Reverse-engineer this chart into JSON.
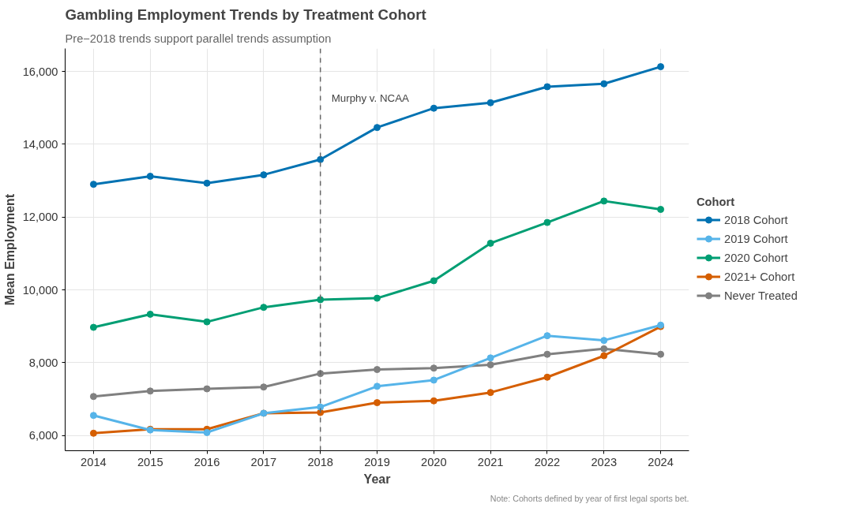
{
  "chart_data": {
    "type": "line",
    "title": "Gambling Employment Trends by Treatment Cohort",
    "subtitle": "Pre−2018 trends support parallel trends assumption",
    "xlabel": "Year",
    "ylabel": "Mean Employment",
    "legend_title": "Cohort",
    "x": [
      2014,
      2015,
      2016,
      2017,
      2018,
      2019,
      2020,
      2021,
      2022,
      2023,
      2024
    ],
    "series": [
      {
        "name": "2018 Cohort",
        "color": "#0072b2",
        "values": [
          12900,
          13120,
          12930,
          13160,
          13580,
          14460,
          14990,
          15140,
          15580,
          15660,
          16130
        ]
      },
      {
        "name": "2019 Cohort",
        "color": "#56b4e9",
        "values": [
          6550,
          6150,
          6080,
          6610,
          6780,
          7350,
          7520,
          8130,
          8740,
          8610,
          9030
        ]
      },
      {
        "name": "2020 Cohort",
        "color": "#009e73",
        "values": [
          8970,
          9330,
          9120,
          9520,
          9730,
          9770,
          10250,
          11280,
          11850,
          12440,
          12210
        ]
      },
      {
        "name": "2021+ Cohort",
        "color": "#d55e00",
        "values": [
          6060,
          6170,
          6170,
          6610,
          6630,
          6900,
          6950,
          7180,
          7600,
          8190,
          8990
        ]
      },
      {
        "name": "Never Treated",
        "color": "#808080",
        "values": [
          7070,
          7220,
          7280,
          7330,
          7700,
          7810,
          7850,
          7940,
          8230,
          8380,
          8230
        ]
      }
    ],
    "xlim": [
      2013.5,
      2024.5
    ],
    "xticks": [
      2014,
      2015,
      2016,
      2017,
      2018,
      2019,
      2020,
      2021,
      2022,
      2023,
      2024
    ],
    "ylim": [
      5580,
      16630
    ],
    "yticks": [
      {
        "value": 6000,
        "label": "6,000"
      },
      {
        "value": 8000,
        "label": "8,000"
      },
      {
        "value": 10000,
        "label": "10,000"
      },
      {
        "value": 12000,
        "label": "12,000"
      },
      {
        "value": 14000,
        "label": "14,000"
      },
      {
        "value": 16000,
        "label": "16,000"
      }
    ],
    "ref_lines": [
      {
        "axis": "x",
        "value": 2018,
        "label": "Murphy v. NCAA",
        "color": "#666666",
        "line_style": "dashed"
      }
    ],
    "annotations": [
      "Note: Cohorts defined by year of first legal sports bet."
    ],
    "grid": true,
    "legend": "right",
    "marker": "circle",
    "line_style": "solid"
  }
}
